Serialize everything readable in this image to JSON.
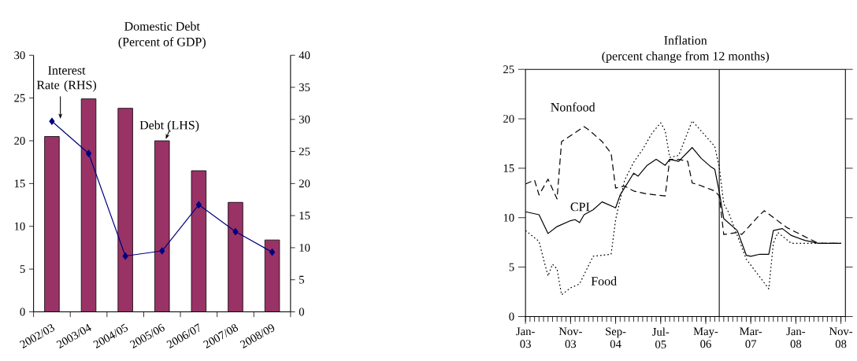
{
  "chart_data": [
    {
      "type": "bar",
      "title": "Domestic Debt",
      "subtitle": "(Percent of GDP)",
      "categories": [
        "2002/03",
        "2003/04",
        "2004/05",
        "2005/06",
        "2006/07",
        "2007/08",
        "2008/09"
      ],
      "series": [
        {
          "name": "Debt (LHS)",
          "color": "#993366",
          "values": [
            20.5,
            24.9,
            23.8,
            20.0,
            16.5,
            12.8,
            8.4
          ]
        },
        {
          "name": "Interest Rate (RHS)",
          "type": "line",
          "axis": "y2",
          "color": "#000080",
          "marker": "diamond",
          "values": [
            29.7,
            24.7,
            8.7,
            9.5,
            16.7,
            12.5,
            9.3
          ]
        }
      ],
      "ylim": [
        0,
        30
      ],
      "yticks": [
        0,
        5,
        10,
        15,
        20,
        25,
        30
      ],
      "y2lim": [
        0,
        40
      ],
      "y2ticks": [
        0,
        5,
        10,
        15,
        20,
        25,
        30,
        35,
        40
      ],
      "legend": false
    },
    {
      "type": "line",
      "title": "Inflation",
      "subtitle": "(percent change from 12 months)",
      "series": [
        {
          "name": "Nonfood",
          "color": "#000000",
          "line_style": "dashed",
          "x": [
            "2003-01",
            "2003-03",
            "2003-04",
            "2003-06",
            "2003-08",
            "2003-09",
            "2003-10",
            "2004-02",
            "2004-03",
            "2004-06",
            "2004-08",
            "2004-09",
            "2004-11",
            "2005-01",
            "2005-04",
            "2005-08",
            "2005-09",
            "2005-11",
            "2006-01",
            "2006-02",
            "2006-03",
            "2006-07",
            "2006-08",
            "2006-09",
            "2006-12",
            "2007-01",
            "2007-05",
            "2007-06",
            "2007-11",
            "2008-06",
            "2008-11"
          ],
          "values": [
            13.4,
            13.8,
            12.3,
            13.9,
            11.9,
            17.7,
            18.0,
            19.2,
            18.9,
            17.7,
            16.5,
            13.0,
            13.2,
            12.7,
            12.4,
            12.2,
            15.9,
            15.9,
            15.7,
            13.5,
            13.4,
            12.7,
            12.2,
            8.3,
            8.5,
            8.3,
            10.3,
            10.7,
            9.0,
            7.4,
            7.4
          ]
        },
        {
          "name": "CPI",
          "color": "#000000",
          "line_style": "solid",
          "x": [
            "2003-01",
            "2003-04",
            "2003-06",
            "2003-08",
            "2003-11",
            "2003-12",
            "2004-01",
            "2004-02",
            "2004-04",
            "2004-06",
            "2004-09",
            "2004-10",
            "2005-01",
            "2005-02",
            "2005-04",
            "2005-06",
            "2005-08",
            "2005-09",
            "2005-11",
            "2006-02",
            "2006-04",
            "2006-06",
            "2006-07",
            "2006-08",
            "2006-09",
            "2006-12",
            "2007-02",
            "2007-03",
            "2007-05",
            "2007-07",
            "2007-08",
            "2007-10",
            "2007-12",
            "2008-03",
            "2008-06",
            "2008-11"
          ],
          "values": [
            10.6,
            10.3,
            8.4,
            9.1,
            9.7,
            9.8,
            9.5,
            10.3,
            10.8,
            11.6,
            11.0,
            12.3,
            14.5,
            14.2,
            15.3,
            15.9,
            15.3,
            15.9,
            15.7,
            17.1,
            16.0,
            15.2,
            14.9,
            12.6,
            9.9,
            8.7,
            6.2,
            6.1,
            6.3,
            6.3,
            8.7,
            8.9,
            8.2,
            7.7,
            7.4,
            7.4
          ]
        },
        {
          "name": "Food",
          "color": "#000000",
          "line_style": "dotted",
          "x": [
            "2003-01",
            "2003-04",
            "2003-05",
            "2003-06",
            "2003-07",
            "2003-08",
            "2003-09",
            "2003-11",
            "2004-01",
            "2004-04",
            "2004-08",
            "2004-09",
            "2004-11",
            "2005-01",
            "2005-03",
            "2005-05",
            "2005-07",
            "2005-08",
            "2005-09",
            "2005-11",
            "2006-02",
            "2006-07",
            "2006-08",
            "2006-09",
            "2006-10",
            "2007-02",
            "2007-07",
            "2007-08",
            "2007-09",
            "2007-12",
            "2008-11"
          ],
          "values": [
            8.7,
            7.6,
            5.8,
            4.1,
            5.3,
            4.8,
            2.2,
            2.9,
            3.3,
            6.1,
            6.3,
            9.8,
            13.8,
            15.6,
            16.9,
            18.5,
            19.6,
            18.8,
            16.1,
            16.3,
            19.8,
            17.2,
            15.1,
            11.4,
            10.6,
            5.8,
            2.8,
            7.4,
            8.5,
            7.4,
            7.4
          ]
        }
      ],
      "xlim": [
        "2003-01",
        "2008-12"
      ],
      "xticks": [
        {
          "value": "2003-01",
          "label": "Jan-03"
        },
        {
          "value": "2003-11",
          "label": "Nov-03"
        },
        {
          "value": "2004-09",
          "label": "Sep-04"
        },
        {
          "value": "2005-07",
          "label": "Jul-05"
        },
        {
          "value": "2006-05",
          "label": "May-06"
        },
        {
          "value": "2007-03",
          "label": "Mar-07"
        },
        {
          "value": "2008-01",
          "label": "Jan-08"
        },
        {
          "value": "2008-11",
          "label": "Nov-08"
        }
      ],
      "ylim": [
        0,
        25
      ],
      "yticks": [
        0,
        5,
        10,
        15,
        20,
        25
      ],
      "ref_lines": [
        {
          "axis": "x",
          "value": "2006-08"
        }
      ],
      "legend": false
    }
  ]
}
